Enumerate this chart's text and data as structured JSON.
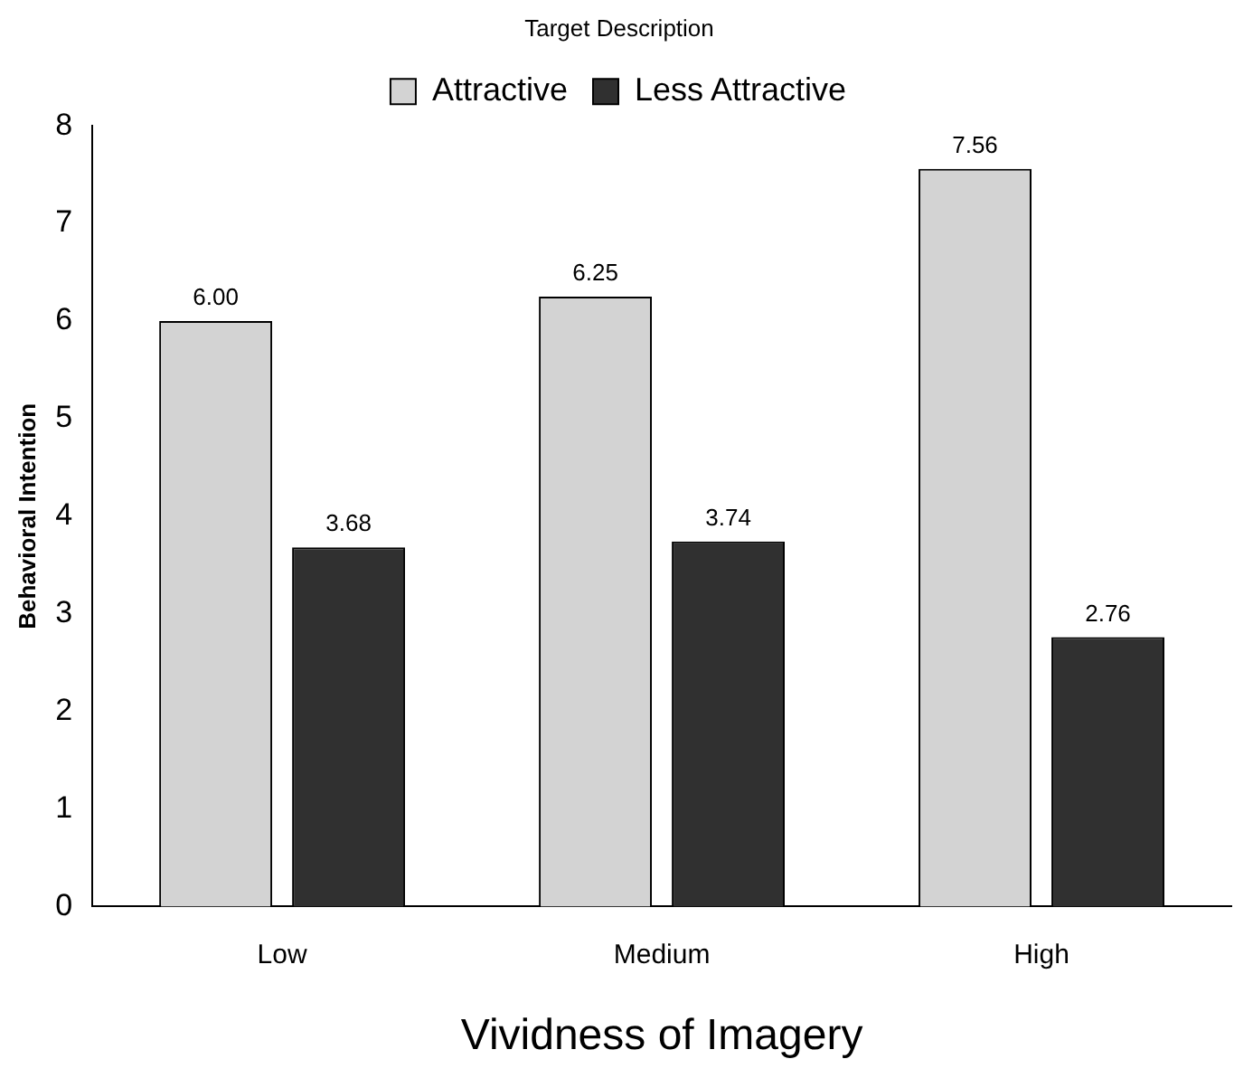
{
  "chart_data": {
    "type": "bar",
    "legend_title": "Target Description",
    "xlabel": "Vividness of Imagery",
    "ylabel": "Behavioral Intention",
    "categories": [
      "Low",
      "Medium",
      "High"
    ],
    "series": [
      {
        "name": "Attractive",
        "color": "#d3d3d3",
        "values": [
          6.0,
          6.25,
          7.56
        ],
        "value_labels": [
          "6.00",
          "6.25",
          "7.56"
        ]
      },
      {
        "name": "Less Attractive",
        "color": "#303030",
        "values": [
          3.68,
          3.74,
          2.76
        ],
        "value_labels": [
          "3.68",
          "3.74",
          "2.76"
        ]
      }
    ],
    "ylim": [
      0,
      8
    ],
    "yticks": [
      0,
      1,
      2,
      3,
      4,
      5,
      6,
      7,
      8
    ],
    "grid": false,
    "legend": "top"
  }
}
